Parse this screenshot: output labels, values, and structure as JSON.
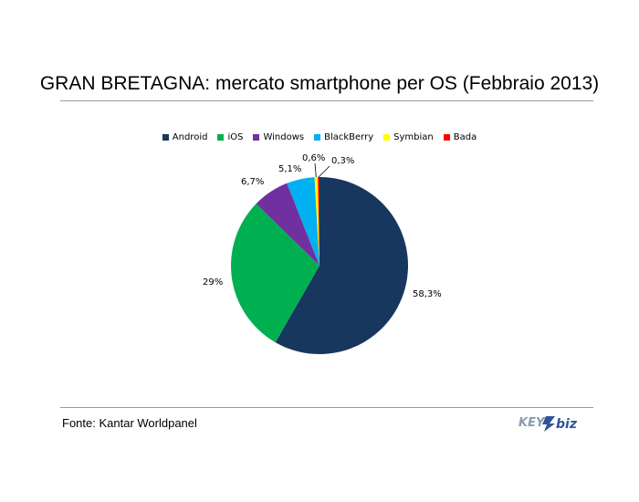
{
  "chart_data": {
    "type": "pie",
    "title": "GRAN BRETAGNA: mercato smartphone per OS (Febbraio 2013)",
    "categories": [
      "Android",
      "iOS",
      "Windows",
      "BlackBerry",
      "Symbian",
      "Bada"
    ],
    "values": [
      58.3,
      29,
      6.7,
      5.1,
      0.6,
      0.3
    ],
    "data_labels": [
      "58,3%",
      "29%",
      "6,7%",
      "5,1%",
      "0,6%",
      "0,3%"
    ],
    "colors": [
      "#17375e",
      "#00b050",
      "#7030a0",
      "#00b0f0",
      "#ffff00",
      "#ff0000"
    ],
    "legend_position": "top",
    "start_angle_deg": 0,
    "direction": "clockwise"
  },
  "footer": {
    "source": "Fonte: Kantar Worldpanel",
    "logo_text": "KEY4biz"
  }
}
